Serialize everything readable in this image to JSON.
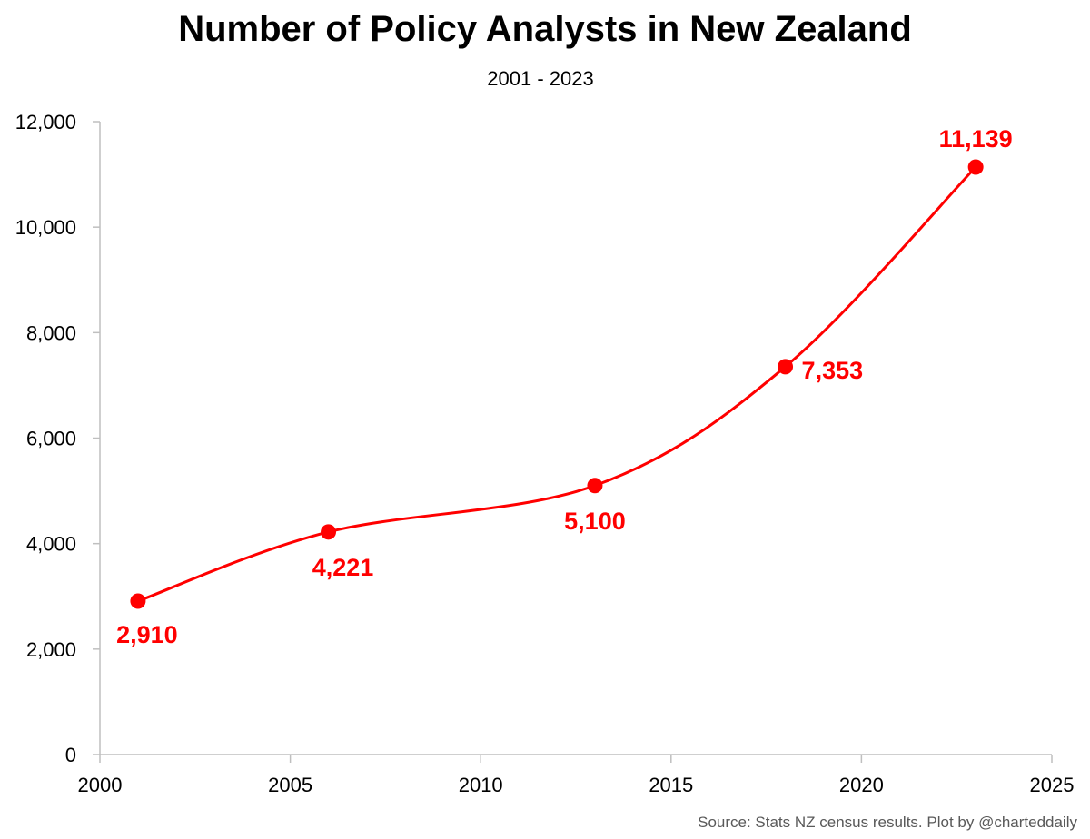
{
  "chart_data": {
    "type": "line",
    "title": "Number of Policy Analysts in New Zealand",
    "subtitle": "2001 - 2023",
    "xlim": [
      2000,
      2025
    ],
    "ylim": [
      0,
      12000
    ],
    "x_ticks": [
      2000,
      2005,
      2010,
      2015,
      2020,
      2025
    ],
    "x_tick_labels": [
      "2000",
      "2005",
      "2010",
      "2015",
      "2020",
      "2025"
    ],
    "y_ticks": [
      0,
      2000,
      4000,
      6000,
      8000,
      10000,
      12000
    ],
    "y_tick_labels": [
      "0",
      "2,000",
      "4,000",
      "6,000",
      "8,000",
      "10,000",
      "12,000"
    ],
    "grid": false,
    "smooth": true,
    "series": [
      {
        "color": "#ff0000",
        "x": [
          2001,
          2006,
          2013,
          2018,
          2023
        ],
        "values": [
          2910,
          4221,
          5100,
          7353,
          11139
        ],
        "data_labels": [
          "2,910",
          "4,221",
          "5,100",
          "7,353",
          "11,139"
        ]
      }
    ]
  },
  "footer": {
    "source": "Source: Stats NZ census results. Plot by @charteddaily"
  }
}
